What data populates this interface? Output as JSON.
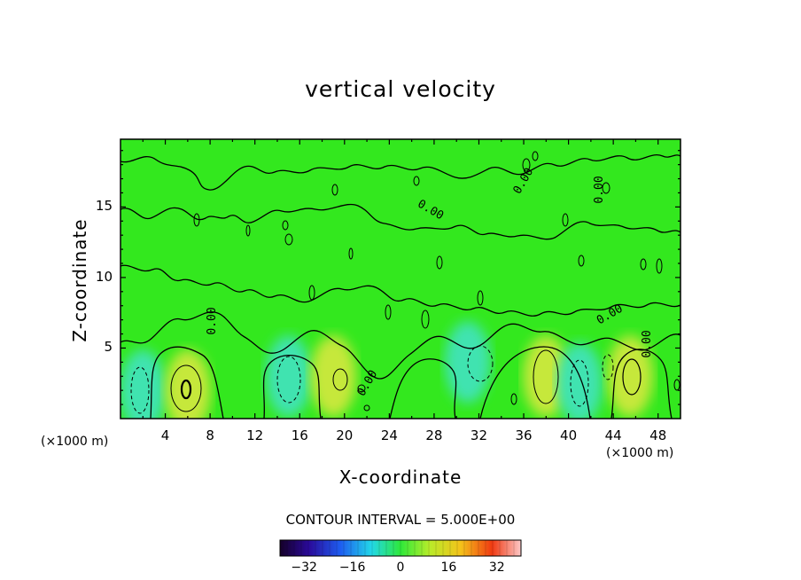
{
  "chart_data": {
    "type": "contour",
    "title": "vertical velocity",
    "xlabel": "X-coordinate",
    "ylabel": "Z-coordinate",
    "x_unit_label": "(×1000 m)",
    "x_ticks": [
      "4",
      "8",
      "12",
      "16",
      "20",
      "24",
      "28",
      "32",
      "36",
      "40",
      "44",
      "48"
    ],
    "y_ticks": [
      "5",
      "10",
      "15"
    ],
    "xlim": [
      0,
      50
    ],
    "ylim": [
      0,
      19.8
    ],
    "contour_label": "0.00",
    "contour_interval_text": "CONTOUR INTERVAL = 5.000E+00",
    "colorbar": {
      "ticks": [
        "−32",
        "−16",
        "0",
        "16",
        "32"
      ],
      "range": [
        -40,
        40
      ]
    },
    "features": [
      {
        "x": 2,
        "z": 2,
        "sign": "negative"
      },
      {
        "x": 6,
        "z": 2,
        "sign": "positive"
      },
      {
        "x": 15,
        "z": 3,
        "sign": "negative"
      },
      {
        "x": 19,
        "z": 3,
        "sign": "positive"
      },
      {
        "x": 31,
        "z": 4,
        "sign": "negative"
      },
      {
        "x": 38,
        "z": 3,
        "sign": "positive"
      },
      {
        "x": 41,
        "z": 2.5,
        "sign": "negative"
      },
      {
        "x": 45.5,
        "z": 3,
        "sign": "positive"
      }
    ],
    "colors": {
      "background_field": "#33e81e",
      "positive": "#c6e83a",
      "negative": "#3fe3b0"
    }
  }
}
